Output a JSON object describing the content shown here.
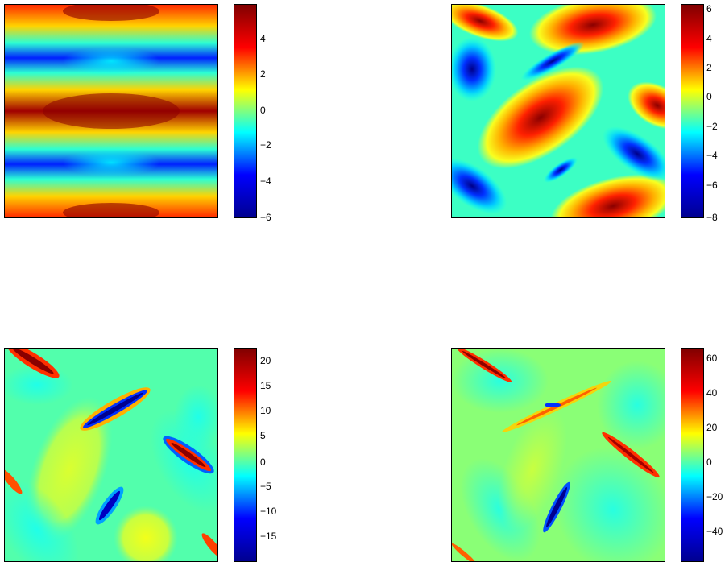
{
  "chart_data": [
    {
      "type": "heatmap",
      "title": "",
      "colormap": "jet",
      "colorbar": {
        "min": -6,
        "max": 5.8,
        "ticks": [
          -6,
          -4,
          -2,
          0,
          2,
          4
        ]
      },
      "colorbar_ticks": [
        "−6",
        "−4",
        "−2",
        "0",
        "2",
        "4"
      ],
      "field": {
        "description_pattern": "horizontal bands",
        "rows_bands_note": "red at top, middle, bottom; blue at ~1/4 and ~3/4 height near left and right edges"
      }
    },
    {
      "type": "heatmap",
      "title": "",
      "colormap": "jet",
      "colorbar": {
        "min": -8.3,
        "max": 6.3,
        "ticks": [
          -8,
          -6,
          -4,
          -2,
          0,
          2,
          4,
          6
        ]
      },
      "colorbar_ticks": [
        "−8",
        "−6",
        "−4",
        "−2",
        "0",
        "2",
        "4",
        "6"
      ],
      "field": {
        "description_pattern": "tilted lobes"
      }
    },
    {
      "type": "heatmap",
      "title": "",
      "colormap": "jet",
      "colorbar": {
        "min": -19.5,
        "max": 22,
        "ticks": [
          -15,
          -10,
          -5,
          0,
          5,
          10,
          15,
          20
        ]
      },
      "colorbar_ticks": [
        "−15",
        "−10",
        "−5",
        "0",
        "5",
        "10",
        "15",
        "20"
      ],
      "field": {
        "description_pattern": "thin diagonal filaments"
      }
    },
    {
      "type": "heatmap",
      "title": "",
      "colormap": "jet",
      "colorbar": {
        "min": -57,
        "max": 67,
        "ticks": [
          -40,
          -20,
          0,
          20,
          40,
          60
        ]
      },
      "colorbar_ticks": [
        "−40",
        "−20",
        "0",
        "20",
        "40",
        "60"
      ],
      "field": {
        "description_pattern": "very thin filaments"
      }
    }
  ]
}
